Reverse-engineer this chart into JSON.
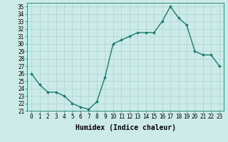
{
  "x": [
    0,
    1,
    2,
    3,
    4,
    5,
    6,
    7,
    8,
    9,
    10,
    11,
    12,
    13,
    14,
    15,
    16,
    17,
    18,
    19,
    20,
    21,
    22,
    23
  ],
  "y": [
    26,
    24.5,
    23.5,
    23.5,
    23,
    22,
    21.5,
    21.2,
    22.2,
    25.5,
    30,
    30.5,
    31,
    31.5,
    31.5,
    31.5,
    33,
    35,
    33.5,
    32.5,
    29,
    28.5,
    28.5,
    27
  ],
  "line_color": "#1a7a6e",
  "marker": "D",
  "marker_size": 2.0,
  "bg_color": "#cceae7",
  "grid_color": "#aad4d0",
  "xlabel": "Humidex (Indice chaleur)",
  "xlim": [
    -0.5,
    23.5
  ],
  "ylim": [
    21,
    35.5
  ],
  "yticks": [
    21,
    22,
    23,
    24,
    25,
    26,
    27,
    28,
    29,
    30,
    31,
    32,
    33,
    34,
    35
  ],
  "xticks": [
    0,
    1,
    2,
    3,
    4,
    5,
    6,
    7,
    8,
    9,
    10,
    11,
    12,
    13,
    14,
    15,
    16,
    17,
    18,
    19,
    20,
    21,
    22,
    23
  ],
  "tick_fontsize": 5.5,
  "xlabel_fontsize": 7.0,
  "line_width": 1.0
}
